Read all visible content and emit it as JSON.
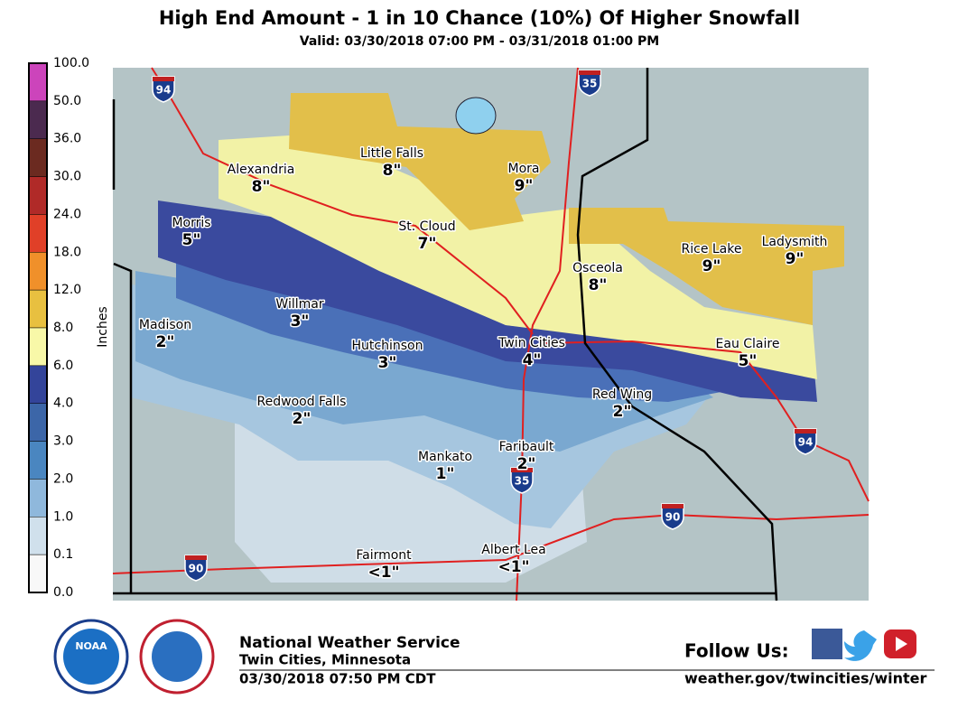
{
  "header": {
    "title": "High End Amount - 1 in 10 Chance (10%) Of Higher Snowfall",
    "subtitle": "Valid: 03/30/2018 07:00 PM - 03/31/2018 01:00 PM"
  },
  "legend": {
    "label": "Inches",
    "ticks": [
      "100.0",
      "50.0",
      "36.0",
      "30.0",
      "24.0",
      "18.0",
      "12.0",
      "8.0",
      "6.0",
      "4.0",
      "3.0",
      "2.0",
      "1.0",
      "0.1",
      "0.0"
    ],
    "colors": [
      "#cc44bb",
      "#4b2a4f",
      "#6b2a20",
      "#b02a28",
      "#e04028",
      "#f0902a",
      "#e8c040",
      "#f8f8a8",
      "#33449a",
      "#3c66a8",
      "#4a86c0",
      "#8fb8dc",
      "#d0e0ec",
      "#f8f8f8"
    ]
  },
  "cities": [
    {
      "name": "Alexandria",
      "amount": "8\""
    },
    {
      "name": "Little Falls",
      "amount": "8\""
    },
    {
      "name": "Mora",
      "amount": "9\""
    },
    {
      "name": "Morris",
      "amount": "5\""
    },
    {
      "name": "St. Cloud",
      "amount": "7\""
    },
    {
      "name": "Osceola",
      "amount": "8\""
    },
    {
      "name": "Rice Lake",
      "amount": "9\""
    },
    {
      "name": "Ladysmith",
      "amount": "9\""
    },
    {
      "name": "Madison",
      "amount": "2\""
    },
    {
      "name": "Willmar",
      "amount": "3\""
    },
    {
      "name": "Hutchinson",
      "amount": "3\""
    },
    {
      "name": "Twin Cities",
      "amount": "4\""
    },
    {
      "name": "Eau Claire",
      "amount": "5\""
    },
    {
      "name": "Red Wing",
      "amount": "2\""
    },
    {
      "name": "Redwood Falls",
      "amount": "2\""
    },
    {
      "name": "Faribault",
      "amount": "2\""
    },
    {
      "name": "Mankato",
      "amount": "1\""
    },
    {
      "name": "Fairmont",
      "amount": "<1\""
    },
    {
      "name": "Albert Lea",
      "amount": "<1\""
    }
  ],
  "interstates": [
    "94",
    "35",
    "35",
    "94",
    "90",
    "90"
  ],
  "footer": {
    "logo": "NOAA",
    "office": "National Weather Service",
    "location": "Twin Cities, Minnesota",
    "issued": "03/30/2018 07:50 PM CDT",
    "follow": "Follow Us:",
    "url": "weather.gov/twincities/winter"
  }
}
